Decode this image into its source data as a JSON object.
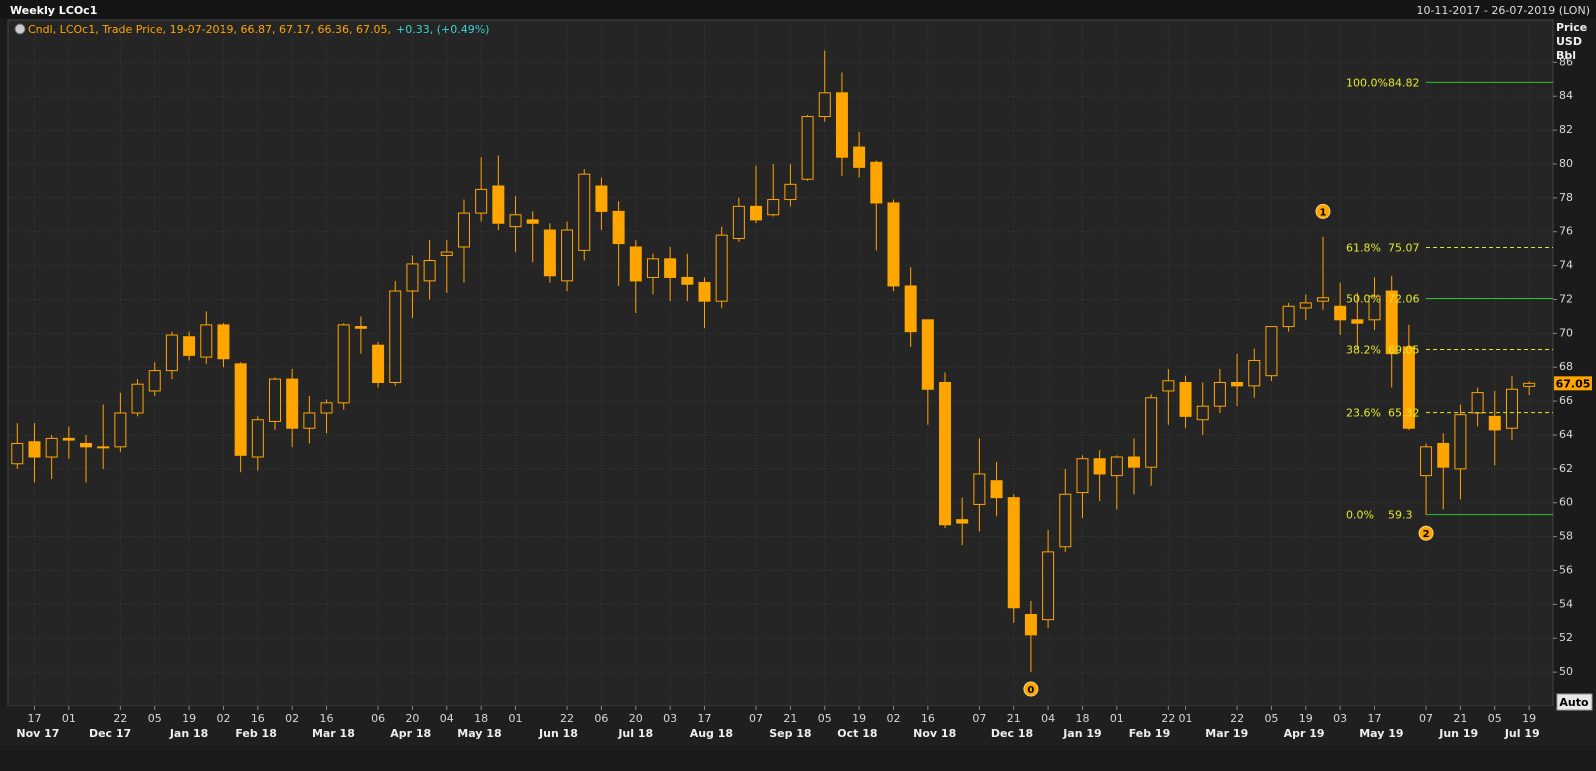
{
  "header": {
    "title": "Weekly LCOc1",
    "range": "10-11-2017 - 26-07-2019 (LON)",
    "legend": "Cndl, LCOc1, Trade Price, 19-07-2019, 66.87, 67.17, 66.36, 67.05,",
    "change": "+0.33, (+0.49%)",
    "button": "Auto"
  },
  "chart_data": {
    "type": "candlestick",
    "y_label": [
      "Price",
      "USD",
      "Bbl"
    ],
    "color": "#ffa500",
    "grid": true,
    "open": [
      62.3,
      63.6,
      62.7,
      63.8,
      63.5,
      63.3,
      63.3,
      65.3,
      66.6,
      67.8,
      69.8,
      68.6,
      70.5,
      68.2,
      62.7,
      64.8,
      67.3,
      64.4,
      65.3,
      65.9,
      70.4,
      69.3,
      67.1,
      72.5,
      73.1,
      74.6,
      75.1,
      77.1,
      78.7,
      76.3,
      76.7,
      76.1,
      73.1,
      74.9,
      78.7,
      77.2,
      75.1,
      73.3,
      74.4,
      73.3,
      73.0,
      71.9,
      75.6,
      77.5,
      77.0,
      77.9,
      79.1,
      82.8,
      84.2,
      81.0,
      80.1,
      77.7,
      72.8,
      70.8,
      67.1,
      59.0,
      59.9,
      61.3,
      60.3,
      53.4,
      53.1,
      57.4,
      60.6,
      62.6,
      61.6,
      62.7,
      62.1,
      66.6,
      67.1,
      64.9,
      65.7,
      67.1,
      66.9,
      67.5,
      70.4,
      71.5,
      71.9,
      71.6,
      70.8,
      70.8,
      72.5,
      69.2,
      61.6,
      63.5,
      62.0,
      65.3,
      65.1,
      64.4,
      66.87
    ],
    "high": [
      64.7,
      64.7,
      64.0,
      64.5,
      64.0,
      65.8,
      66.5,
      67.3,
      68.3,
      70.1,
      70.1,
      71.3,
      70.6,
      68.3,
      65.1,
      67.4,
      67.9,
      66.3,
      66.1,
      70.6,
      71.0,
      69.5,
      73.1,
      74.6,
      75.5,
      75.5,
      77.9,
      80.4,
      80.5,
      78.1,
      77.2,
      76.5,
      76.6,
      79.7,
      79.2,
      77.8,
      75.5,
      74.7,
      75.1,
      74.7,
      73.3,
      76.3,
      78.0,
      79.9,
      80.0,
      80.0,
      82.9,
      86.7,
      85.4,
      81.9,
      80.2,
      77.9,
      73.9,
      70.8,
      67.7,
      60.3,
      63.8,
      62.4,
      60.5,
      54.2,
      58.4,
      62.0,
      62.8,
      63.1,
      62.8,
      63.8,
      66.4,
      67.9,
      67.5,
      67.1,
      67.9,
      68.8,
      69.1,
      70.4,
      71.8,
      72.3,
      75.7,
      73.0,
      72.4,
      73.3,
      73.4,
      70.5,
      63.5,
      64.1,
      65.8,
      66.8,
      66.6,
      67.5,
      67.17
    ],
    "low": [
      62.0,
      61.2,
      61.4,
      62.6,
      61.2,
      62.0,
      63.0,
      65.1,
      66.3,
      67.3,
      68.4,
      68.2,
      68.0,
      61.8,
      61.9,
      64.3,
      63.3,
      63.5,
      64.1,
      65.5,
      68.8,
      66.8,
      66.9,
      70.9,
      72.0,
      72.4,
      73.0,
      76.6,
      76.1,
      74.8,
      74.2,
      73.0,
      72.5,
      74.3,
      76.1,
      72.8,
      71.2,
      72.3,
      71.9,
      71.9,
      70.3,
      71.5,
      75.4,
      76.5,
      76.9,
      77.5,
      79.0,
      82.5,
      79.3,
      79.2,
      74.9,
      72.5,
      69.2,
      64.6,
      58.5,
      57.5,
      58.3,
      59.2,
      52.9,
      50.0,
      52.6,
      57.1,
      59.1,
      60.1,
      59.6,
      60.5,
      61.0,
      64.6,
      64.4,
      64.0,
      65.3,
      65.7,
      66.2,
      67.2,
      70.1,
      70.8,
      71.4,
      69.9,
      69.1,
      70.2,
      66.8,
      64.3,
      59.3,
      59.6,
      60.2,
      64.5,
      62.2,
      63.7,
      66.36
    ],
    "close": [
      63.5,
      62.7,
      63.8,
      63.7,
      63.3,
      63.3,
      65.3,
      67.0,
      67.8,
      69.9,
      68.7,
      70.5,
      68.5,
      62.8,
      64.9,
      67.3,
      64.4,
      65.3,
      65.9,
      70.5,
      70.3,
      67.1,
      72.5,
      74.1,
      74.3,
      74.8,
      77.1,
      78.5,
      76.5,
      77.0,
      76.5,
      73.4,
      76.1,
      79.4,
      77.2,
      75.3,
      73.1,
      74.4,
      73.3,
      72.9,
      71.9,
      75.8,
      77.5,
      76.7,
      77.9,
      78.8,
      82.8,
      84.2,
      80.4,
      79.8,
      77.7,
      72.8,
      70.1,
      66.7,
      58.7,
      58.8,
      61.7,
      60.3,
      53.8,
      52.2,
      57.1,
      60.5,
      62.6,
      61.7,
      62.7,
      62.1,
      66.2,
      67.2,
      65.1,
      65.7,
      67.1,
      66.9,
      68.4,
      70.4,
      71.6,
      71.8,
      72.1,
      70.8,
      70.6,
      72.2,
      68.8,
      64.4,
      63.3,
      62.1,
      65.2,
      66.5,
      64.3,
      66.7,
      67.05
    ],
    "ylim": [
      48,
      88.5
    ],
    "yticks": [
      50,
      52,
      54,
      56,
      58,
      60,
      62,
      64,
      66,
      68,
      70,
      72,
      74,
      76,
      78,
      80,
      82,
      84,
      86
    ],
    "xticks": [
      {
        "value": 1,
        "label": "17"
      },
      {
        "value": 3,
        "label": "01"
      },
      {
        "value": 6,
        "label": "22"
      },
      {
        "value": 8,
        "label": "05"
      },
      {
        "value": 10,
        "label": "19"
      },
      {
        "value": 12,
        "label": "02"
      },
      {
        "value": 14,
        "label": "16"
      },
      {
        "value": 16,
        "label": "02"
      },
      {
        "value": 18,
        "label": "16"
      },
      {
        "value": 21,
        "label": "06"
      },
      {
        "value": 23,
        "label": "20"
      },
      {
        "value": 25,
        "label": "04"
      },
      {
        "value": 27,
        "label": "18"
      },
      {
        "value": 29,
        "label": "01"
      },
      {
        "value": 32,
        "label": "22"
      },
      {
        "value": 34,
        "label": "06"
      },
      {
        "value": 36,
        "label": "20"
      },
      {
        "value": 38,
        "label": "03"
      },
      {
        "value": 40,
        "label": "17"
      },
      {
        "value": 43,
        "label": "07"
      },
      {
        "value": 45,
        "label": "21"
      },
      {
        "value": 47,
        "label": "05"
      },
      {
        "value": 49,
        "label": "19"
      },
      {
        "value": 51,
        "label": "02"
      },
      {
        "value": 53,
        "label": "16"
      },
      {
        "value": 56,
        "label": "07"
      },
      {
        "value": 58,
        "label": "21"
      },
      {
        "value": 60,
        "label": "04"
      },
      {
        "value": 62,
        "label": "18"
      },
      {
        "value": 64,
        "label": "01"
      },
      {
        "value": 67,
        "label": "22"
      },
      {
        "value": 68,
        "label": "01"
      },
      {
        "value": 71,
        "label": "22"
      },
      {
        "value": 73,
        "label": "05"
      },
      {
        "value": 75,
        "label": "19"
      },
      {
        "value": 77,
        "label": "03"
      },
      {
        "value": 79,
        "label": "17"
      },
      {
        "value": 82,
        "label": "07"
      },
      {
        "value": 84,
        "label": "21"
      },
      {
        "value": 86,
        "label": "05"
      },
      {
        "value": 88,
        "label": "19"
      }
    ],
    "month_ticks": [
      {
        "value": 1.2,
        "label": "Nov 17"
      },
      {
        "value": 5.4,
        "label": "Dec 17"
      },
      {
        "value": 10,
        "label": "Jan 18"
      },
      {
        "value": 13.9,
        "label": "Feb 18"
      },
      {
        "value": 18.4,
        "label": "Mar 18"
      },
      {
        "value": 22.9,
        "label": "Apr 18"
      },
      {
        "value": 26.9,
        "label": "May 18"
      },
      {
        "value": 31.5,
        "label": "Jun 18"
      },
      {
        "value": 36,
        "label": "Jul 18"
      },
      {
        "value": 40.4,
        "label": "Aug 18"
      },
      {
        "value": 45,
        "label": "Sep 18"
      },
      {
        "value": 48.9,
        "label": "Oct 18"
      },
      {
        "value": 53.4,
        "label": "Nov 18"
      },
      {
        "value": 57.9,
        "label": "Dec 18"
      },
      {
        "value": 62,
        "label": "Jan 19"
      },
      {
        "value": 65.9,
        "label": "Feb 19"
      },
      {
        "value": 70.4,
        "label": "Mar 19"
      },
      {
        "value": 74.9,
        "label": "Apr 19"
      },
      {
        "value": 79.4,
        "label": "May 19"
      },
      {
        "value": 83.9,
        "label": "Jun 19"
      },
      {
        "value": 87.6,
        "label": "Jul 19"
      }
    ],
    "fib_start": 82,
    "fib_levels": [
      {
        "label": "100.0%",
        "value": 84.82,
        "style": "solid",
        "color": "#2ec22e"
      },
      {
        "label": "61.8%",
        "value": 75.07,
        "style": "dashed",
        "color": "#e6e62e"
      },
      {
        "label": "50.0%",
        "value": 72.06,
        "style": "solid",
        "color": "#2ec22e"
      },
      {
        "label": "38.2%",
        "value": 69.05,
        "style": "dashed",
        "color": "#e6e62e"
      },
      {
        "label": "23.6%",
        "value": 65.32,
        "style": "dashed",
        "color": "#e6e62e"
      },
      {
        "label": "0.0%",
        "value": 59.3,
        "style": "solid",
        "color": "#2ec22e"
      }
    ],
    "annotations": [
      {
        "text": "1",
        "x": 76,
        "y": 77.2
      },
      {
        "text": "0",
        "x": 59,
        "y": 49
      },
      {
        "text": "2",
        "x": 82,
        "y": 58.2
      }
    ]
  }
}
